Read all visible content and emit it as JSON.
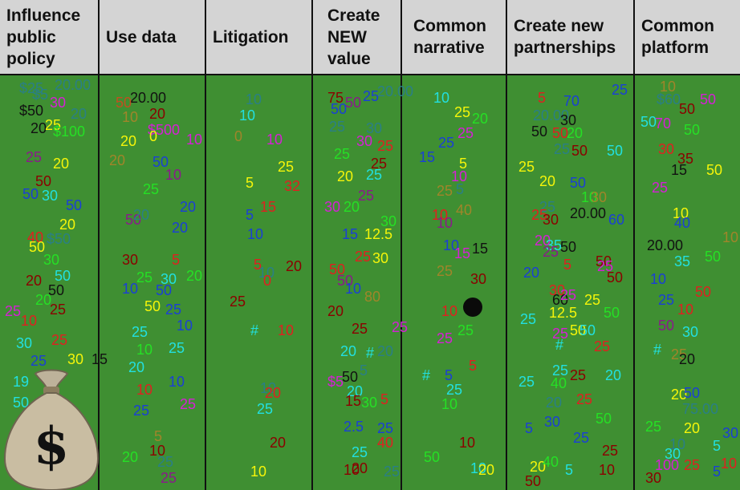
{
  "columns": [
    {
      "title": "Influence\npublic\npolicy",
      "color": "#d4d4d4"
    },
    {
      "title": "Use data",
      "color": "#d4d4d4"
    },
    {
      "title": "Litigation",
      "color": "#d4d4d4"
    },
    {
      "title": "Create\nNEW\nvalue",
      "color": "#d4d4d4"
    },
    {
      "title": "Common\nnarrative",
      "color": "#d4d4d4"
    },
    {
      "title": "Create new\npartnerships",
      "color": "#d4d4d4"
    },
    {
      "title": "Common\nplatform",
      "color": "#d4d4d4"
    }
  ],
  "board_color": "#3f8f32",
  "icons": {
    "money_bag": "money-bag-icon",
    "ink_blot": "ink-blot-icon"
  },
  "markers": [
    {
      "text": "$25",
      "color": "#2a7f86"
    },
    {
      "text": "$5",
      "color": "#2a7f86"
    },
    {
      "text": "20.00",
      "color": "#2a7f86"
    },
    {
      "text": "$50",
      "color": "#111111"
    },
    {
      "text": "30",
      "color": "#d61fd6"
    },
    {
      "text": "20",
      "color": "#2a7f86"
    },
    {
      "text": "20",
      "color": "#111111"
    },
    {
      "text": "25",
      "color": "#f5f50a"
    },
    {
      "text": "$100",
      "color": "#25e025"
    },
    {
      "text": "25",
      "color": "#8b1a8b"
    },
    {
      "text": "20",
      "color": "#f5f50a"
    },
    {
      "text": "50",
      "color": "#8b0000"
    },
    {
      "text": "50",
      "color": "#1a3fd6"
    },
    {
      "text": "30",
      "color": "#22e0e0"
    },
    {
      "text": "50",
      "color": "#1a3fd6"
    },
    {
      "text": "20",
      "color": "#f5f50a"
    },
    {
      "text": "40",
      "color": "#e02020"
    },
    {
      "text": "50",
      "color": "#f5f50a"
    },
    {
      "text": "$50",
      "color": "#2a7f86"
    },
    {
      "text": "30",
      "color": "#25e025"
    },
    {
      "text": "50",
      "color": "#22e0e0"
    },
    {
      "text": "20",
      "color": "#8b0000"
    },
    {
      "text": "50",
      "color": "#111111"
    },
    {
      "text": "20",
      "color": "#25e025"
    },
    {
      "text": "25",
      "color": "#d61fd6"
    },
    {
      "text": "10",
      "color": "#e02020"
    },
    {
      "text": "25",
      "color": "#8b0000"
    },
    {
      "text": "30",
      "color": "#22e0e0"
    },
    {
      "text": "25",
      "color": "#e02020"
    },
    {
      "text": "25",
      "color": "#1a3fd6"
    },
    {
      "text": "30",
      "color": "#f5f50a"
    },
    {
      "text": "15",
      "color": "#111111"
    },
    {
      "text": "19",
      "color": "#22e0e0"
    },
    {
      "text": "50",
      "color": "#22e0e0"
    },
    {
      "text": "25",
      "color": "#8b1a8b"
    },
    {
      "text": "20.00",
      "color": "#111111"
    },
    {
      "text": "50",
      "color": "#c05020"
    },
    {
      "text": "20",
      "color": "#8b0000"
    },
    {
      "text": "10",
      "color": "#a0852a"
    },
    {
      "text": "$500",
      "color": "#d61fd6"
    },
    {
      "text": "20",
      "color": "#f5f50a"
    },
    {
      "text": "0",
      "color": "#f5f50a"
    },
    {
      "text": "10",
      "color": "#d61fd6"
    },
    {
      "text": "20",
      "color": "#a0852a"
    },
    {
      "text": "50",
      "color": "#1a3fd6"
    },
    {
      "text": "10",
      "color": "#8b1a8b"
    },
    {
      "text": "25",
      "color": "#25e025"
    },
    {
      "text": "20",
      "color": "#1a3fd6"
    },
    {
      "text": "50",
      "color": "#8b1a8b"
    },
    {
      "text": "20",
      "color": "#2a7f86"
    },
    {
      "text": "20",
      "color": "#1a3fd6"
    },
    {
      "text": "30",
      "color": "#8b0000"
    },
    {
      "text": "5",
      "color": "#e02020"
    },
    {
      "text": "25",
      "color": "#25e025"
    },
    {
      "text": "30",
      "color": "#22e0e0"
    },
    {
      "text": "20",
      "color": "#25e025"
    },
    {
      "text": "10",
      "color": "#1a3fd6"
    },
    {
      "text": "50",
      "color": "#1a3fd6"
    },
    {
      "text": "50",
      "color": "#f5f50a"
    },
    {
      "text": "25",
      "color": "#1a3fd6"
    },
    {
      "text": "10",
      "color": "#1a3fd6"
    },
    {
      "text": "25",
      "color": "#22e0e0"
    },
    {
      "text": "10",
      "color": "#25e025"
    },
    {
      "text": "25",
      "color": "#22e0e0"
    },
    {
      "text": "20",
      "color": "#22e0e0"
    },
    {
      "text": "10",
      "color": "#1a3fd6"
    },
    {
      "text": "10",
      "color": "#e02020"
    },
    {
      "text": "25",
      "color": "#d61fd6"
    },
    {
      "text": "25",
      "color": "#1a3fd6"
    },
    {
      "text": "5",
      "color": "#a0852a"
    },
    {
      "text": "10",
      "color": "#8b0000"
    },
    {
      "text": "20",
      "color": "#25e025"
    },
    {
      "text": "25",
      "color": "#2a7f86"
    },
    {
      "text": "25",
      "color": "#8b1a8b"
    },
    {
      "text": "10",
      "color": "#2a7f86"
    },
    {
      "text": "10",
      "color": "#22e0e0"
    },
    {
      "text": "0",
      "color": "#a0852a"
    },
    {
      "text": "10",
      "color": "#d61fd6"
    },
    {
      "text": "25",
      "color": "#f5f50a"
    },
    {
      "text": "5",
      "color": "#f5f50a"
    },
    {
      "text": "32",
      "color": "#e02020"
    },
    {
      "text": "15",
      "color": "#e02020"
    },
    {
      "text": "5",
      "color": "#1a3fd6"
    },
    {
      "text": "10",
      "color": "#1a3fd6"
    },
    {
      "text": "5",
      "color": "#e02020"
    },
    {
      "text": "10",
      "color": "#2a7f86"
    },
    {
      "text": "0",
      "color": "#e02020"
    },
    {
      "text": "20",
      "color": "#8b0000"
    },
    {
      "text": "25",
      "color": "#8b0000"
    },
    {
      "text": "#",
      "color": "#22e0e0"
    },
    {
      "text": "10",
      "color": "#e02020"
    },
    {
      "text": "10",
      "color": "#2a7f86"
    },
    {
      "text": "20",
      "color": "#e02020"
    },
    {
      "text": "20",
      "color": "#8b0000"
    },
    {
      "text": "10",
      "color": "#f5f50a"
    },
    {
      "text": "75",
      "color": "#8b0000"
    },
    {
      "text": "25",
      "color": "#1a3fd6"
    },
    {
      "text": "20.00",
      "color": "#2a7f86"
    },
    {
      "text": "50",
      "color": "#1a3fd6"
    },
    {
      "text": "50",
      "color": "#8b1a8b"
    },
    {
      "text": "25",
      "color": "#2a7f86"
    },
    {
      "text": "30",
      "color": "#2a7f86"
    },
    {
      "text": "30",
      "color": "#d61fd6"
    },
    {
      "text": "25",
      "color": "#25e025"
    },
    {
      "text": "25",
      "color": "#e02020"
    },
    {
      "text": "25",
      "color": "#8b0000"
    },
    {
      "text": "20",
      "color": "#f5f50a"
    },
    {
      "text": "25",
      "color": "#22e0e0"
    },
    {
      "text": "25",
      "color": "#8b1a8b"
    },
    {
      "text": "30",
      "color": "#d61fd6"
    },
    {
      "text": "20",
      "color": "#25e025"
    },
    {
      "text": "30",
      "color": "#25e025"
    },
    {
      "text": "15",
      "color": "#1a3fd6"
    },
    {
      "text": "12.5",
      "color": "#f5f50a"
    },
    {
      "text": "25",
      "color": "#e02020"
    },
    {
      "text": "30",
      "color": "#f5f50a"
    },
    {
      "text": "50",
      "color": "#e02020"
    },
    {
      "text": "50",
      "color": "#8b1a8b"
    },
    {
      "text": "80",
      "color": "#a0852a"
    },
    {
      "text": "10",
      "color": "#1a3fd6"
    },
    {
      "text": "20",
      "color": "#8b0000"
    },
    {
      "text": "25",
      "color": "#8b0000"
    },
    {
      "text": "25",
      "color": "#d61fd6"
    },
    {
      "text": "#",
      "color": "#22e0e0"
    },
    {
      "text": "20",
      "color": "#2a7f86"
    },
    {
      "text": "20",
      "color": "#22e0e0"
    },
    {
      "text": "5",
      "color": "#2a7f86"
    },
    {
      "text": "$5",
      "color": "#d61fd6"
    },
    {
      "text": "50",
      "color": "#111111"
    },
    {
      "text": "20",
      "color": "#22e0e0"
    },
    {
      "text": "15",
      "color": "#8b0000"
    },
    {
      "text": "30",
      "color": "#25e025"
    },
    {
      "text": "5",
      "color": "#e02020"
    },
    {
      "text": "2.5",
      "color": "#1a3fd6"
    },
    {
      "text": "25",
      "color": "#1a3fd6"
    },
    {
      "text": "25",
      "color": "#22e0e0"
    },
    {
      "text": "40",
      "color": "#e02020"
    },
    {
      "text": "10",
      "color": "#8b0000"
    },
    {
      "text": "20",
      "color": "#8b0000"
    },
    {
      "text": "25",
      "color": "#2a7f86"
    },
    {
      "text": "10",
      "color": "#22e0e0"
    },
    {
      "text": "25",
      "color": "#f5f50a"
    },
    {
      "text": "20",
      "color": "#25e025"
    },
    {
      "text": "25",
      "color": "#d61fd6"
    },
    {
      "text": "25",
      "color": "#1a3fd6"
    },
    {
      "text": "15",
      "color": "#1a3fd6"
    },
    {
      "text": "5",
      "color": "#f5f50a"
    },
    {
      "text": "10",
      "color": "#d61fd6"
    },
    {
      "text": "25",
      "color": "#a0852a"
    },
    {
      "text": "5",
      "color": "#2a7f86"
    },
    {
      "text": "10",
      "color": "#e02020"
    },
    {
      "text": "40",
      "color": "#a0852a"
    },
    {
      "text": "10",
      "color": "#8b1a8b"
    },
    {
      "text": "10",
      "color": "#1a3fd6"
    },
    {
      "text": "15",
      "color": "#d61fd6"
    },
    {
      "text": "15",
      "color": "#111111"
    },
    {
      "text": "25",
      "color": "#a0852a"
    },
    {
      "text": "30",
      "color": "#8b0000"
    },
    {
      "text": "10",
      "color": "#e02020"
    },
    {
      "text": "25",
      "color": "#d61fd6"
    },
    {
      "text": "25",
      "color": "#25e025"
    },
    {
      "text": "#",
      "color": "#22e0e0"
    },
    {
      "text": "5",
      "color": "#1a3fd6"
    },
    {
      "text": "5",
      "color": "#e02020"
    },
    {
      "text": "25",
      "color": "#22e0e0"
    },
    {
      "text": "10",
      "color": "#25e025"
    },
    {
      "text": "10",
      "color": "#8b0000"
    },
    {
      "text": "50",
      "color": "#25e025"
    },
    {
      "text": "10",
      "color": "#22e0e0"
    },
    {
      "text": "20",
      "color": "#f5f50a"
    },
    {
      "text": "5",
      "color": "#e02020"
    },
    {
      "text": "70",
      "color": "#1a3fd6"
    },
    {
      "text": "25",
      "color": "#1a3fd6"
    },
    {
      "text": "20.00",
      "color": "#2a7f86"
    },
    {
      "text": "30",
      "color": "#111111"
    },
    {
      "text": "50",
      "color": "#111111"
    },
    {
      "text": "50",
      "color": "#e02020"
    },
    {
      "text": "20",
      "color": "#25e025"
    },
    {
      "text": "25",
      "color": "#2a7f86"
    },
    {
      "text": "50",
      "color": "#8b0000"
    },
    {
      "text": "50",
      "color": "#22e0e0"
    },
    {
      "text": "25",
      "color": "#f5f50a"
    },
    {
      "text": "20",
      "color": "#f5f50a"
    },
    {
      "text": "50",
      "color": "#1a3fd6"
    },
    {
      "text": "10",
      "color": "#25e025"
    },
    {
      "text": "30",
      "color": "#a0852a"
    },
    {
      "text": "25",
      "color": "#2a7f86"
    },
    {
      "text": "25",
      "color": "#e02020"
    },
    {
      "text": "30",
      "color": "#8b0000"
    },
    {
      "text": "20.00",
      "color": "#111111"
    },
    {
      "text": "60",
      "color": "#1a3fd6"
    },
    {
      "text": "20",
      "color": "#d61fd6"
    },
    {
      "text": "35",
      "color": "#22e0e0"
    },
    {
      "text": "50",
      "color": "#111111"
    },
    {
      "text": "25",
      "color": "#8b1a8b"
    },
    {
      "text": "5",
      "color": "#e02020"
    },
    {
      "text": "50",
      "color": "#8b0000"
    },
    {
      "text": "20",
      "color": "#1a3fd6"
    },
    {
      "text": "25",
      "color": "#d61fd6"
    },
    {
      "text": "50",
      "color": "#8b0000"
    },
    {
      "text": "30",
      "color": "#e02020"
    },
    {
      "text": "60",
      "color": "#111111"
    },
    {
      "text": "25",
      "color": "#d61fd6"
    },
    {
      "text": "25",
      "color": "#f5f50a"
    },
    {
      "text": "12.5",
      "color": "#f5f50a"
    },
    {
      "text": "25",
      "color": "#22e0e0"
    },
    {
      "text": "50",
      "color": "#25e025"
    },
    {
      "text": "25",
      "color": "#d61fd6"
    },
    {
      "text": "50",
      "color": "#f5f50a"
    },
    {
      "text": "50",
      "color": "#22e0e0"
    },
    {
      "text": "#",
      "color": "#22e0e0"
    },
    {
      "text": "25",
      "color": "#e02020"
    },
    {
      "text": "25",
      "color": "#22e0e0"
    },
    {
      "text": "25",
      "color": "#8b0000"
    },
    {
      "text": "20",
      "color": "#22e0e0"
    },
    {
      "text": "25",
      "color": "#22e0e0"
    },
    {
      "text": "40",
      "color": "#25e025"
    },
    {
      "text": "25",
      "color": "#e02020"
    },
    {
      "text": "20",
      "color": "#2a7f86"
    },
    {
      "text": "50",
      "color": "#25e025"
    },
    {
      "text": "30",
      "color": "#1a3fd6"
    },
    {
      "text": "25",
      "color": "#1a3fd6"
    },
    {
      "text": "25",
      "color": "#8b0000"
    },
    {
      "text": "20",
      "color": "#f5f50a"
    },
    {
      "text": "40",
      "color": "#25e025"
    },
    {
      "text": "5",
      "color": "#22e0e0"
    },
    {
      "text": "10",
      "color": "#8b0000"
    },
    {
      "text": "50",
      "color": "#8b0000"
    },
    {
      "text": "5",
      "color": "#1a3fd6"
    },
    {
      "text": "10",
      "color": "#a0852a"
    },
    {
      "text": "$60",
      "color": "#2a7f86"
    },
    {
      "text": "50",
      "color": "#d61fd6"
    },
    {
      "text": "50",
      "color": "#8b0000"
    },
    {
      "text": "50",
      "color": "#22e0e0"
    },
    {
      "text": "70",
      "color": "#d61fd6"
    },
    {
      "text": "50",
      "color": "#25e025"
    },
    {
      "text": "30",
      "color": "#e02020"
    },
    {
      "text": "35",
      "color": "#8b0000"
    },
    {
      "text": "15",
      "color": "#111111"
    },
    {
      "text": "50",
      "color": "#f5f50a"
    },
    {
      "text": "25",
      "color": "#d61fd6"
    },
    {
      "text": "10",
      "color": "#f5f50a"
    },
    {
      "text": "40",
      "color": "#1a3fd6"
    },
    {
      "text": "20.00",
      "color": "#111111"
    },
    {
      "text": "35",
      "color": "#22e0e0"
    },
    {
      "text": "50",
      "color": "#25e025"
    },
    {
      "text": "10",
      "color": "#a0852a"
    },
    {
      "text": "10",
      "color": "#1a3fd6"
    },
    {
      "text": "50",
      "color": "#e02020"
    },
    {
      "text": "25",
      "color": "#1a3fd6"
    },
    {
      "text": "10",
      "color": "#e02020"
    },
    {
      "text": "50",
      "color": "#8b1a8b"
    },
    {
      "text": "30",
      "color": "#22e0e0"
    },
    {
      "text": "#",
      "color": "#22e0e0"
    },
    {
      "text": "25",
      "color": "#a0852a"
    },
    {
      "text": "20",
      "color": "#111111"
    },
    {
      "text": "20",
      "color": "#f5f50a"
    },
    {
      "text": "50",
      "color": "#1a3fd6"
    },
    {
      "text": "75.00",
      "color": "#2a7f86"
    },
    {
      "text": "25",
      "color": "#25e025"
    },
    {
      "text": "20",
      "color": "#f5f50a"
    },
    {
      "text": "30",
      "color": "#1a3fd6"
    },
    {
      "text": "5",
      "color": "#22e0e0"
    },
    {
      "text": "10",
      "color": "#2a7f86"
    },
    {
      "text": "30",
      "color": "#22e0e0"
    },
    {
      "text": "100",
      "color": "#d61fd6"
    },
    {
      "text": "25",
      "color": "#e02020"
    },
    {
      "text": "10",
      "color": "#e02020"
    },
    {
      "text": "30",
      "color": "#8b0000"
    },
    {
      "text": "5",
      "color": "#1a3fd6"
    },
    {
      "text": "25",
      "color": "#22e0e0"
    }
  ]
}
